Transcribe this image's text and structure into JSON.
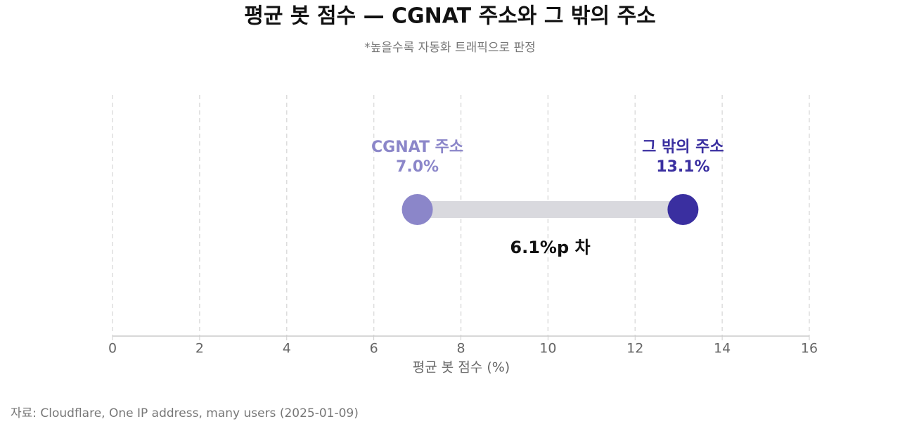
{
  "chart_data": {
    "type": "dumbbell",
    "title": "평균 봇 점수 — CGNAT 주소와 그 밖의 주소",
    "subtitle": "*높을수록 자동화 트래픽으로 판정",
    "series": [
      {
        "name": "CGNAT 주소",
        "color": "#8b86c9",
        "values": [
          7.0
        ],
        "value_labels": [
          "7.0%"
        ]
      },
      {
        "name": "그 밖의 주소",
        "color": "#3a2fa0",
        "values": [
          13.1
        ],
        "value_labels": [
          "13.1%"
        ]
      }
    ],
    "annotation": "6.1%p 차",
    "xlabel": "평균 봇 점수 (%)",
    "xlim": [
      0,
      16
    ],
    "xticks": [
      0,
      2,
      4,
      6,
      8,
      10,
      12,
      14,
      16
    ],
    "grid": true,
    "source": "자료: Cloudflare, One IP address, many users (2025-01-09)"
  }
}
